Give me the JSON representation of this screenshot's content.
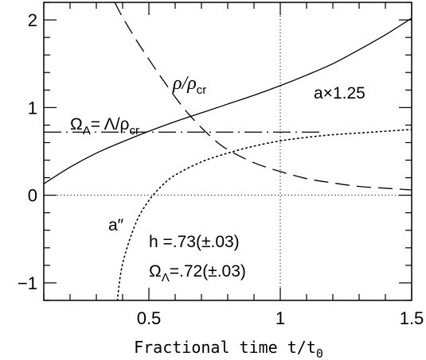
{
  "chart_data": {
    "type": "line",
    "xlabel": "Fractional time t/t",
    "xlabel_subscript": "0",
    "xlim": [
      0.1,
      1.5
    ],
    "ylim": [
      -1.2,
      2.2
    ],
    "x_ticks": [
      0.5,
      1,
      1.5
    ],
    "x_tick_labels": [
      "0.5",
      "1",
      "1.5"
    ],
    "y_ticks": [
      -1,
      0,
      1,
      2
    ],
    "y_tick_labels": [
      "−1",
      "0",
      "1",
      "2"
    ],
    "grid": false,
    "reference_lines": [
      {
        "orientation": "horizontal",
        "value": 0,
        "style": "dotted"
      },
      {
        "orientation": "vertical",
        "value": 1,
        "style": "dotted"
      }
    ],
    "series": [
      {
        "label_text": "a×1.25",
        "style": "solid",
        "points": [
          [
            0.1,
            0.13
          ],
          [
            0.2,
            0.32
          ],
          [
            0.3,
            0.48
          ],
          [
            0.4,
            0.61
          ],
          [
            0.5,
            0.73
          ],
          [
            0.6,
            0.84
          ],
          [
            0.7,
            0.94
          ],
          [
            0.8,
            1.04
          ],
          [
            0.9,
            1.14
          ],
          [
            1.0,
            1.25
          ],
          [
            1.1,
            1.37
          ],
          [
            1.2,
            1.5
          ],
          [
            1.3,
            1.66
          ],
          [
            1.4,
            1.83
          ],
          [
            1.5,
            2.02
          ]
        ]
      },
      {
        "label_text": "ρ/ρ",
        "label_subscript": "cr",
        "style": "long-dash",
        "points": [
          [
            0.37,
            2.2
          ],
          [
            0.4,
            2.03
          ],
          [
            0.45,
            1.78
          ],
          [
            0.5,
            1.55
          ],
          [
            0.55,
            1.33
          ],
          [
            0.6,
            1.12
          ],
          [
            0.65,
            0.93
          ],
          [
            0.7,
            0.77
          ],
          [
            0.75,
            0.63
          ],
          [
            0.8,
            0.52
          ],
          [
            0.9,
            0.37
          ],
          [
            1.0,
            0.27
          ],
          [
            1.1,
            0.19
          ],
          [
            1.2,
            0.14
          ],
          [
            1.3,
            0.1
          ],
          [
            1.4,
            0.08
          ],
          [
            1.5,
            0.06
          ]
        ]
      },
      {
        "label_text": "Ω",
        "label_subscript": "Λ",
        "label_rest": "=  Λ/ρ",
        "label_rest_subscript": "cr",
        "style": "dash-dot",
        "points": [
          [
            0.1,
            0.72
          ],
          [
            1.15,
            0.72
          ]
        ]
      },
      {
        "label_text": "a″",
        "style": "dotted",
        "points": [
          [
            0.38,
            -1.2
          ],
          [
            0.4,
            -0.78
          ],
          [
            0.45,
            -0.32
          ],
          [
            0.5,
            -0.06
          ],
          [
            0.55,
            0.11
          ],
          [
            0.6,
            0.23
          ],
          [
            0.7,
            0.38
          ],
          [
            0.8,
            0.48
          ],
          [
            0.9,
            0.56
          ],
          [
            1.0,
            0.62
          ],
          [
            1.1,
            0.66
          ],
          [
            1.2,
            0.69
          ],
          [
            1.3,
            0.71
          ],
          [
            1.4,
            0.73
          ],
          [
            1.5,
            0.75
          ]
        ]
      }
    ],
    "annotations": {
      "h_line": "h  =.73(±.03)",
      "omega_symbol": "Ω",
      "omega_subscript": "Λ",
      "omega_value": "=.72(±.03)"
    }
  }
}
